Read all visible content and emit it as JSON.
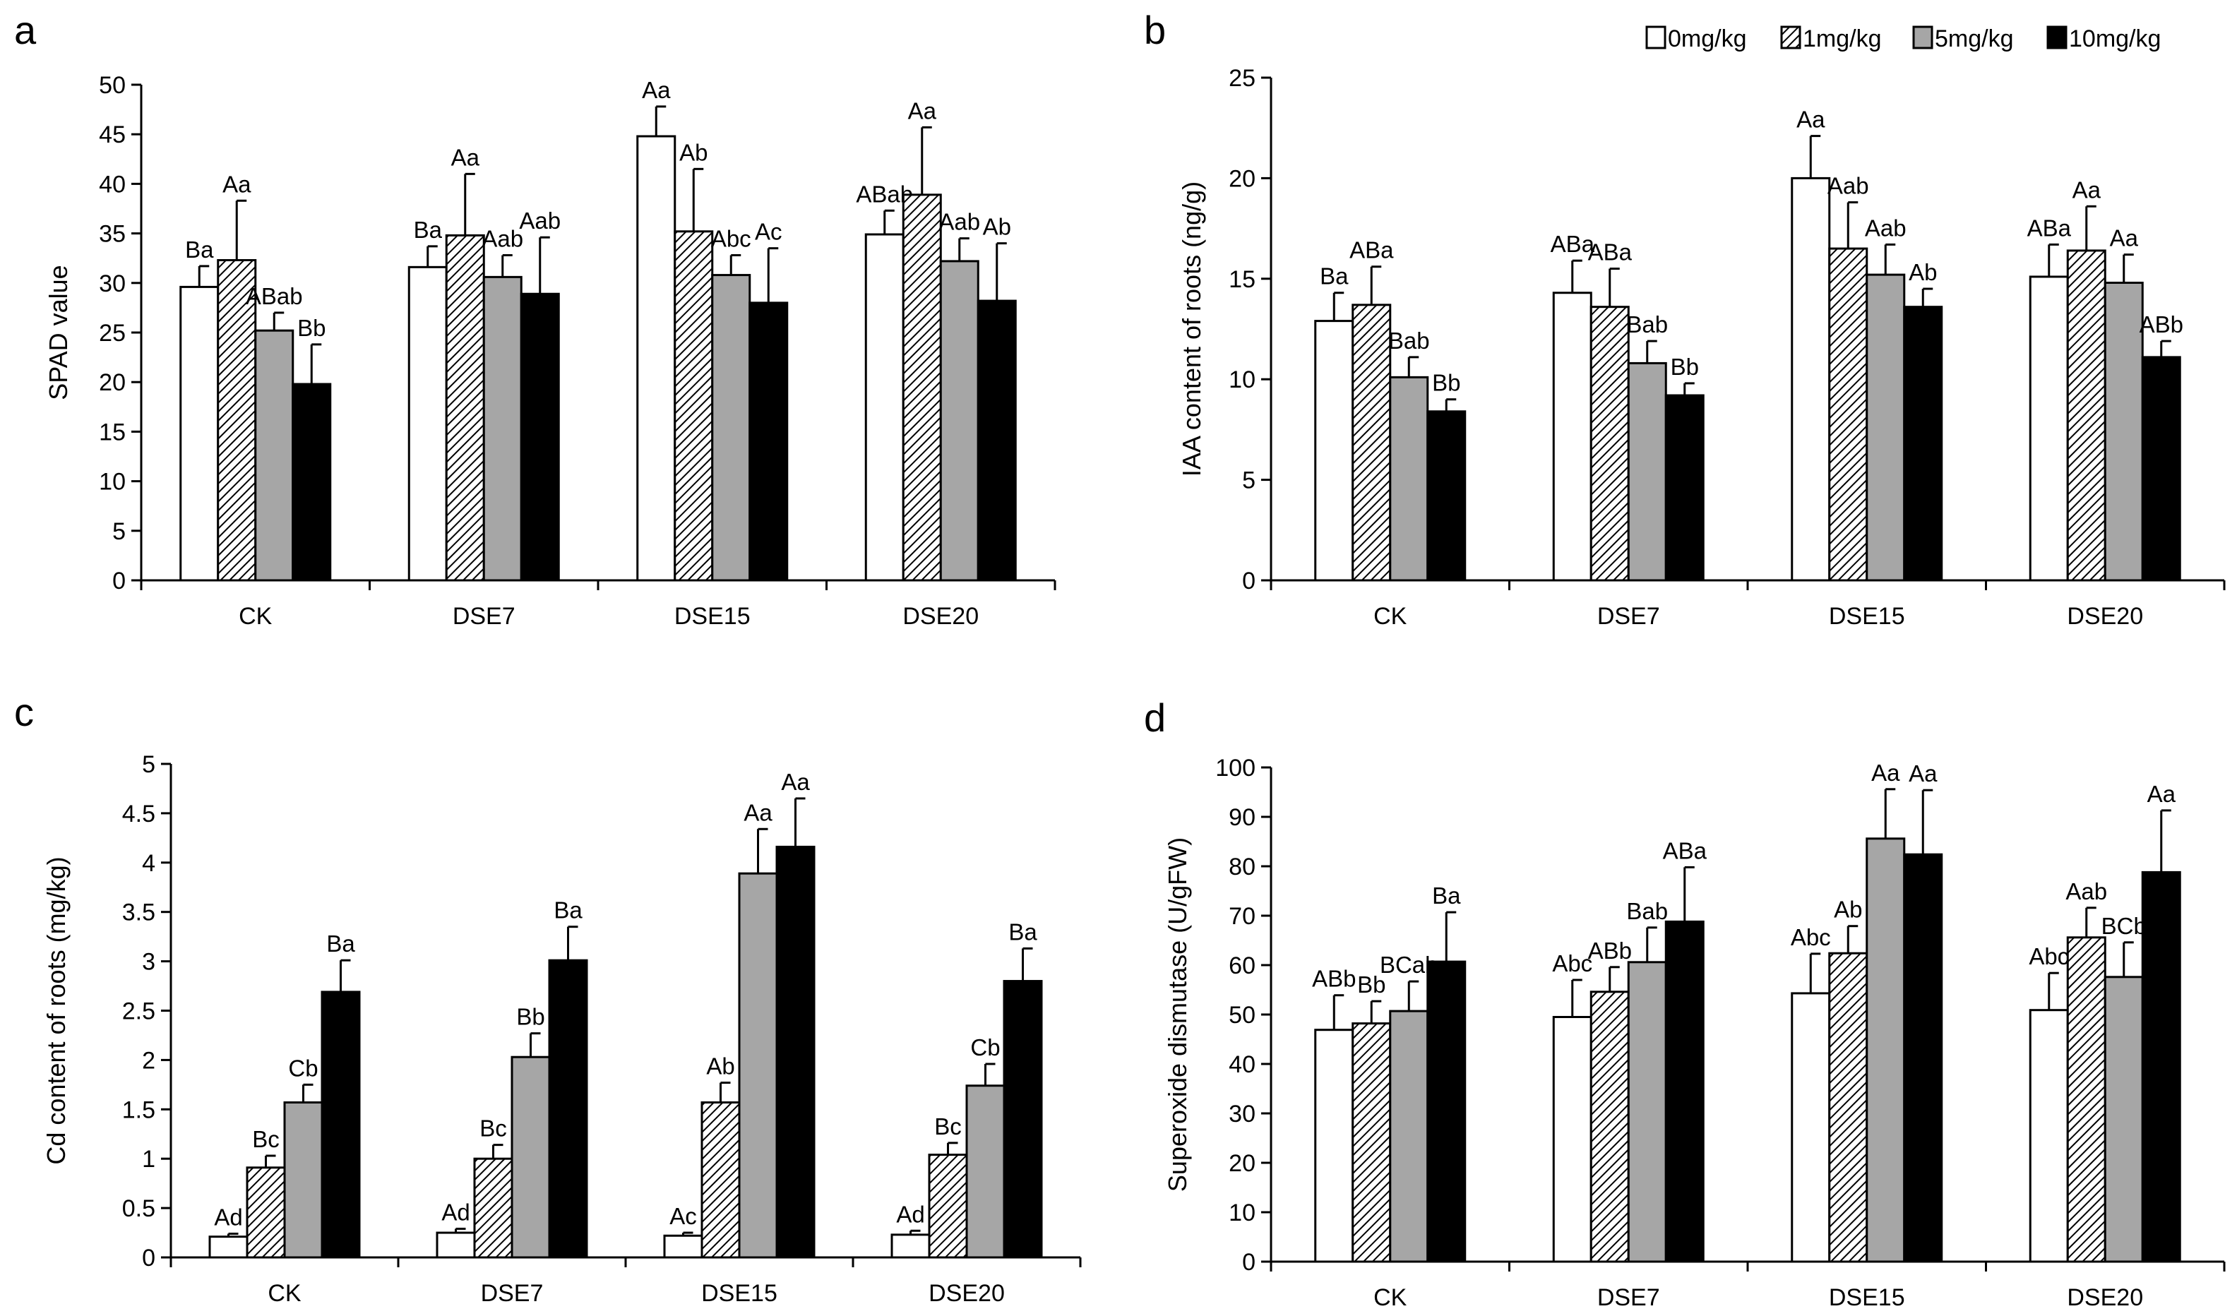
{
  "legend": {
    "entries": [
      "0mg/kg",
      "1mg/kg",
      "5mg/kg",
      "10mg/kg"
    ]
  },
  "colors": {
    "0mg/kg": "#ffffff",
    "1mg/kg": "hatch",
    "5mg/kg": "#a6a6a6",
    "10mg/kg": "#000000",
    "axis": "#000000"
  },
  "chart_data": [
    {
      "panel": "a",
      "type": "bar",
      "ylabel": "SPAD value",
      "ylim": [
        0,
        50
      ],
      "ystep": 5,
      "categories": [
        "CK",
        "DSE7",
        "DSE15",
        "DSE20"
      ],
      "series": [
        {
          "name": "0mg/kg",
          "values": [
            29.6,
            31.6,
            44.8,
            34.9
          ],
          "errors": [
            2.1,
            2.1,
            3.0,
            2.4
          ],
          "labels": [
            "Ba",
            "Ba",
            "Aa",
            "ABab"
          ]
        },
        {
          "name": "1mg/kg",
          "values": [
            32.3,
            34.8,
            35.2,
            38.9
          ],
          "errors": [
            6.0,
            6.2,
            6.3,
            6.8
          ],
          "labels": [
            "Aa",
            "Aa",
            "Ab",
            "Aa"
          ]
        },
        {
          "name": "5mg/kg",
          "values": [
            25.2,
            30.6,
            30.8,
            32.2
          ],
          "errors": [
            1.8,
            2.2,
            2.0,
            2.3
          ],
          "labels": [
            "ABab",
            "Aab",
            "Abc",
            "Aab"
          ]
        },
        {
          "name": "10mg/kg",
          "values": [
            19.8,
            28.9,
            28.0,
            28.2
          ],
          "errors": [
            4.0,
            5.7,
            5.5,
            5.8
          ],
          "labels": [
            "Bb",
            "Aab",
            "Ac",
            "Ab"
          ]
        }
      ]
    },
    {
      "panel": "b",
      "type": "bar",
      "ylabel": "IAA content of roots  (ng/g)",
      "ylim": [
        0,
        25
      ],
      "ystep": 5,
      "categories": [
        "CK",
        "DSE7",
        "DSE15",
        "DSE20"
      ],
      "series": [
        {
          "name": "0mg/kg",
          "values": [
            12.9,
            14.3,
            20.0,
            15.1
          ],
          "errors": [
            1.4,
            1.6,
            2.1,
            1.6
          ],
          "labels": [
            "Ba",
            "ABa",
            "Aa",
            "ABa"
          ]
        },
        {
          "name": "1mg/kg",
          "values": [
            13.7,
            13.6,
            16.5,
            16.4
          ],
          "errors": [
            1.9,
            1.9,
            2.3,
            2.2
          ],
          "labels": [
            "ABa",
            "ABa",
            "Aab",
            "Aa"
          ]
        },
        {
          "name": "5mg/kg",
          "values": [
            10.1,
            10.8,
            15.2,
            14.8
          ],
          "errors": [
            1.0,
            1.1,
            1.5,
            1.4
          ],
          "labels": [
            "Bab",
            "Bab",
            "Aab",
            "Aa"
          ]
        },
        {
          "name": "10mg/kg",
          "values": [
            8.4,
            9.2,
            13.6,
            11.1
          ],
          "errors": [
            0.6,
            0.6,
            0.9,
            0.8
          ],
          "labels": [
            "Bb",
            "Bb",
            "Ab",
            "ABb"
          ]
        }
      ]
    },
    {
      "panel": "c",
      "type": "bar",
      "ylabel": "Cd content of roots (mg/kg)",
      "ylim": [
        0,
        5
      ],
      "ystep": 0.5,
      "categories": [
        "CK",
        "DSE7",
        "DSE15",
        "DSE20"
      ],
      "series": [
        {
          "name": "0mg/kg",
          "values": [
            0.21,
            0.25,
            0.22,
            0.23
          ],
          "errors": [
            0.03,
            0.04,
            0.03,
            0.04
          ],
          "labels": [
            "Ad",
            "Ad",
            "Ac",
            "Ad"
          ]
        },
        {
          "name": "1mg/kg",
          "values": [
            0.91,
            1.0,
            1.57,
            1.04
          ],
          "errors": [
            0.12,
            0.14,
            0.2,
            0.12
          ],
          "labels": [
            "Bc",
            "Bc",
            "Ab",
            "Bc"
          ]
        },
        {
          "name": "5mg/kg",
          "values": [
            1.57,
            2.03,
            3.89,
            1.74
          ],
          "errors": [
            0.18,
            0.24,
            0.45,
            0.22
          ],
          "labels": [
            "Cb",
            "Bb",
            "Aa",
            "Cb"
          ]
        },
        {
          "name": "10mg/kg",
          "values": [
            2.69,
            3.01,
            4.16,
            2.8
          ],
          "errors": [
            0.32,
            0.34,
            0.49,
            0.33
          ],
          "labels": [
            "Ba",
            "Ba",
            "Aa",
            "Ba"
          ]
        }
      ]
    },
    {
      "panel": "d",
      "type": "bar",
      "ylabel": "Superoxide dismutase (U/gFW)",
      "ylim": [
        0,
        100
      ],
      "ystep": 10,
      "categories": [
        "CK",
        "DSE7",
        "DSE15",
        "DSE20"
      ],
      "series": [
        {
          "name": "0mg/kg",
          "values": [
            46.9,
            49.5,
            54.3,
            50.9
          ],
          "errors": [
            7.0,
            7.5,
            8.0,
            7.5
          ],
          "labels": [
            "ABb",
            "Abc",
            "Abc",
            "Abc"
          ]
        },
        {
          "name": "1mg/kg",
          "values": [
            48.2,
            54.6,
            62.4,
            65.6
          ],
          "errors": [
            4.5,
            5.0,
            5.5,
            6.0
          ],
          "labels": [
            "Bb",
            "ABb",
            "Ab",
            "Aab"
          ]
        },
        {
          "name": "5mg/kg",
          "values": [
            50.7,
            60.6,
            85.6,
            57.6
          ],
          "errors": [
            6.0,
            7.0,
            10.0,
            7.0
          ],
          "labels": [
            "BCab",
            "Bab",
            "Aa",
            "BCb"
          ]
        },
        {
          "name": "10mg/kg",
          "values": [
            60.7,
            68.8,
            82.4,
            78.8
          ],
          "errors": [
            10.0,
            11.0,
            13.0,
            12.5
          ],
          "labels": [
            "Ba",
            "ABa",
            "Aa",
            "Aa"
          ]
        }
      ]
    }
  ]
}
